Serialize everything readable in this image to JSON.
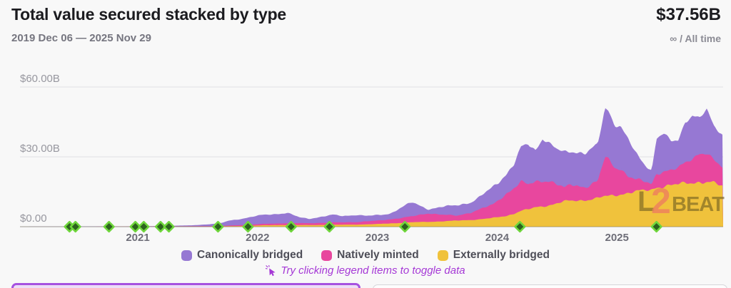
{
  "header": {
    "title": "Total value secured stacked by type",
    "date_range": "2019 Dec 06 — 2025 Nov 29",
    "current_value": "$37.56B",
    "range_label": "∞ / All time"
  },
  "legend": {
    "items": [
      {
        "label": "Canonically bridged",
        "color": "#9678d3"
      },
      {
        "label": "Natively minted",
        "color": "#e8479e"
      },
      {
        "label": "Externally bridged",
        "color": "#f0c23c"
      }
    ],
    "hint": "Try clicking legend items to toggle data"
  },
  "watermark": {
    "part_l": "L",
    "part_2": "2",
    "part_beat": "BEAT"
  },
  "colors": {
    "milestone_fill": "#2d621f",
    "milestone_stroke": "#6fd63c",
    "grid": "#e4e4e8",
    "axis": "#cdcdd2",
    "hint": "#a538d6"
  },
  "chart_data": {
    "type": "area",
    "stacked": true,
    "title": "Total value secured stacked by type",
    "unit": "USD billions",
    "x_axis": {
      "start_year": 2019.92,
      "end_year": 2025.91,
      "tick_years": [
        2021,
        2022,
        2023,
        2024,
        2025
      ],
      "tick_labels": [
        "2021",
        "2022",
        "2023",
        "2024",
        "2025"
      ]
    },
    "y_axis": {
      "ticks": [
        0,
        30,
        60
      ],
      "tick_labels": [
        "$0.00",
        "$30.00B",
        "$60.00B"
      ],
      "max": 67
    },
    "stack_bottom_to_top": [
      "Externally bridged",
      "Natively minted",
      "Canonically bridged"
    ],
    "x": [
      2019.92,
      2020.5,
      2020.9,
      2021.2,
      2021.45,
      2021.6,
      2021.7,
      2021.76,
      2021.88,
      2021.95,
      2022.05,
      2022.15,
      2022.25,
      2022.35,
      2022.43,
      2022.55,
      2022.63,
      2022.71,
      2022.83,
      2022.91,
      2023.03,
      2023.11,
      2023.19,
      2023.29,
      2023.43,
      2023.55,
      2023.66,
      2023.78,
      2023.84,
      2023.96,
      2024.08,
      2024.14,
      2024.2,
      2024.26,
      2024.32,
      2024.38,
      2024.44,
      2024.5,
      2024.56,
      2024.62,
      2024.74,
      2024.84,
      2024.9,
      2024.93,
      2024.98,
      2025.03,
      2025.09,
      2025.15,
      2025.23,
      2025.29,
      2025.33,
      2025.39,
      2025.45,
      2025.51,
      2025.57,
      2025.63,
      2025.69,
      2025.75,
      2025.81,
      2025.87,
      2025.91
    ],
    "series": [
      {
        "name": "Canonically bridged",
        "color": "#9678d3",
        "values": [
          0,
          0.05,
          0.1,
          0.2,
          0.4,
          0.8,
          1.25,
          2.1,
          2.8,
          3.3,
          3.9,
          4.1,
          4.4,
          2.5,
          1.9,
          2.75,
          3.3,
          2.75,
          3.1,
          2.3,
          2.4,
          2.5,
          4.2,
          6.1,
          1.7,
          3.4,
          4.6,
          4.3,
          4.8,
          7.7,
          8.3,
          10.0,
          15.0,
          17.5,
          13.5,
          18.0,
          16.0,
          15.0,
          15.5,
          14.1,
          14.5,
          16.0,
          20.8,
          20.9,
          18.3,
          18.0,
          16.3,
          11.8,
          7.4,
          5.5,
          15.3,
          16.3,
          12.8,
          11.7,
          17.4,
          18.3,
          15.3,
          19.0,
          14.7,
          14.1,
          12.8
        ]
      },
      {
        "name": "Natively minted",
        "color": "#e8479e",
        "values": [
          0,
          0,
          0.02,
          0.05,
          0.1,
          0.15,
          0.2,
          0.3,
          0.4,
          0.5,
          0.6,
          0.7,
          0.8,
          0.8,
          0.8,
          0.9,
          1.0,
          1.0,
          1.1,
          1.3,
          1.5,
          1.8,
          2.1,
          2.5,
          3.7,
          2.8,
          2.1,
          3.2,
          4.1,
          5.6,
          9.7,
          11.0,
          12.2,
          10.6,
          11.2,
          11.2,
          10.2,
          8.0,
          5.7,
          7.3,
          5.5,
          7.0,
          17.0,
          16.0,
          12.2,
          11.0,
          7.2,
          5.0,
          4.1,
          2.8,
          5.9,
          6.1,
          6.1,
          7.0,
          9.2,
          10.5,
          12.2,
          11.9,
          9.8,
          8.5,
          8.0
        ]
      },
      {
        "name": "Externally bridged",
        "color": "#f0c23c",
        "values": [
          0,
          0,
          0.02,
          0.05,
          0.08,
          0.1,
          0.15,
          0.2,
          0.3,
          0.4,
          0.6,
          0.65,
          0.7,
          0.7,
          0.7,
          0.75,
          0.8,
          0.85,
          0.9,
          1.0,
          1.2,
          1.4,
          1.6,
          1.9,
          2.1,
          2.3,
          2.6,
          2.9,
          3.1,
          3.7,
          4.7,
          5.6,
          6.8,
          7.4,
          8.3,
          8.8,
          9.3,
          10.0,
          10.8,
          11.1,
          11.5,
          12.2,
          13.0,
          13.1,
          13.5,
          14.0,
          14.5,
          15.0,
          15.5,
          15.8,
          17.1,
          17.4,
          17.8,
          18.0,
          18.7,
          19.0,
          19.3,
          19.0,
          18.7,
          17.5,
          16.8
        ]
      }
    ],
    "milestones_years": [
      2020.43,
      2020.48,
      2020.76,
      2020.98,
      2021.05,
      2021.19,
      2021.26,
      2021.67,
      2021.92,
      2022.28,
      2022.6,
      2023.23,
      2024.19,
      2025.33
    ]
  }
}
